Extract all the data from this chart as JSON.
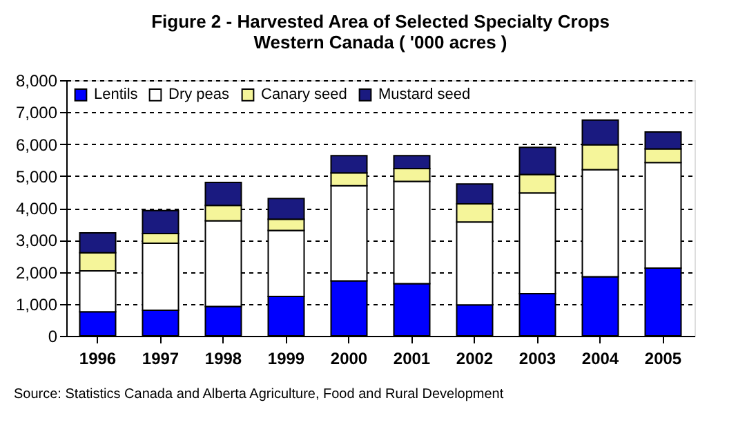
{
  "chart_data": {
    "type": "bar",
    "title": [
      "Figure 2 - Harvested Area of Selected Specialty Crops",
      "Western Canada ( '000 acres )"
    ],
    "categories": [
      "1996",
      "1997",
      "1998",
      "1999",
      "2000",
      "2001",
      "2002",
      "2003",
      "2004",
      "2005"
    ],
    "stacked": true,
    "series": [
      {
        "name": "Lentils",
        "color": "#0000ff",
        "values": [
          750,
          800,
          920,
          1230,
          1720,
          1630,
          970,
          1320,
          1850,
          2120
        ]
      },
      {
        "name": "Dry peas",
        "color": "#ffffff",
        "values": [
          1280,
          2100,
          2680,
          2070,
          2980,
          3200,
          2590,
          3150,
          3350,
          3300
        ]
      },
      {
        "name": "Canary seed",
        "color": "#f5f59a",
        "values": [
          570,
          300,
          480,
          350,
          400,
          400,
          570,
          580,
          780,
          430
        ]
      },
      {
        "name": "Mustard seed",
        "color": "#1a1a80",
        "values": [
          620,
          720,
          720,
          650,
          540,
          410,
          620,
          850,
          770,
          530
        ]
      }
    ],
    "ylim": [
      0,
      8000
    ],
    "yticks": [
      {
        "value": 0,
        "label": "0"
      },
      {
        "value": 1000,
        "label": "1,000"
      },
      {
        "value": 2000,
        "label": "2,000"
      },
      {
        "value": 3000,
        "label": "3,000"
      },
      {
        "value": 4000,
        "label": "4,000"
      },
      {
        "value": 5000,
        "label": "5,000"
      },
      {
        "value": 6000,
        "label": "6,000"
      },
      {
        "value": 7000,
        "label": "7,000"
      },
      {
        "value": 8000,
        "label": "8,000"
      }
    ],
    "grid": "y",
    "legend": "top left",
    "annotations": [
      "Source: Statistics Canada and Alberta Agriculture, Food and Rural Development"
    ]
  }
}
